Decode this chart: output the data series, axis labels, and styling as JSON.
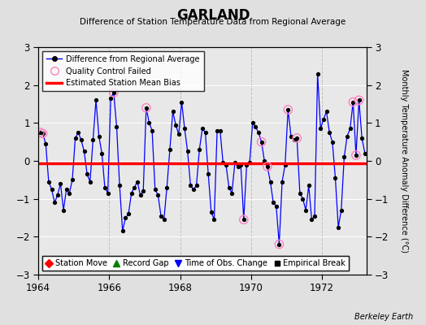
{
  "title": "GARLAND",
  "subtitle": "Difference of Station Temperature Data from Regional Average",
  "ylabel_right": "Monthly Temperature Anomaly Difference (°C)",
  "xlim": [
    1964.0,
    1973.25
  ],
  "ylim": [
    -3,
    3
  ],
  "yticks": [
    -3,
    -2,
    -1,
    0,
    1,
    2,
    3
  ],
  "xticks": [
    1964,
    1966,
    1968,
    1970,
    1972
  ],
  "bias_value": -0.07,
  "background_color": "#e0e0e0",
  "plot_bg_color": "#e8e8e8",
  "watermark": "Berkeley Earth",
  "time_series": [
    [
      1964.0417,
      0.75
    ],
    [
      1964.125,
      0.72
    ],
    [
      1964.2083,
      0.45
    ],
    [
      1964.2917,
      -0.55
    ],
    [
      1964.375,
      -0.75
    ],
    [
      1964.4583,
      -1.1
    ],
    [
      1964.5417,
      -0.9
    ],
    [
      1964.625,
      -0.6
    ],
    [
      1964.7083,
      -1.3
    ],
    [
      1964.7917,
      -0.75
    ],
    [
      1964.875,
      -0.85
    ],
    [
      1964.9583,
      -0.5
    ],
    [
      1965.0417,
      0.6
    ],
    [
      1965.125,
      0.75
    ],
    [
      1965.2083,
      0.55
    ],
    [
      1965.2917,
      0.25
    ],
    [
      1965.375,
      -0.35
    ],
    [
      1965.4583,
      -0.55
    ],
    [
      1965.5417,
      0.55
    ],
    [
      1965.625,
      1.6
    ],
    [
      1965.7083,
      0.65
    ],
    [
      1965.7917,
      0.2
    ],
    [
      1965.875,
      -0.7
    ],
    [
      1965.9583,
      -0.85
    ],
    [
      1966.0417,
      1.65
    ],
    [
      1966.125,
      1.8
    ],
    [
      1966.2083,
      0.9
    ],
    [
      1966.2917,
      -0.65
    ],
    [
      1966.375,
      -1.85
    ],
    [
      1966.4583,
      -1.5
    ],
    [
      1966.5417,
      -1.4
    ],
    [
      1966.625,
      -0.85
    ],
    [
      1966.7083,
      -0.7
    ],
    [
      1966.7917,
      -0.55
    ],
    [
      1966.875,
      -0.9
    ],
    [
      1966.9583,
      -0.8
    ],
    [
      1967.0417,
      1.4
    ],
    [
      1967.125,
      1.0
    ],
    [
      1967.2083,
      0.8
    ],
    [
      1967.2917,
      -0.75
    ],
    [
      1967.375,
      -0.9
    ],
    [
      1967.4583,
      -1.45
    ],
    [
      1967.5417,
      -1.55
    ],
    [
      1967.625,
      -0.7
    ],
    [
      1967.7083,
      0.3
    ],
    [
      1967.7917,
      1.3
    ],
    [
      1967.875,
      0.95
    ],
    [
      1967.9583,
      0.7
    ],
    [
      1968.0417,
      1.55
    ],
    [
      1968.125,
      0.85
    ],
    [
      1968.2083,
      0.25
    ],
    [
      1968.2917,
      -0.65
    ],
    [
      1968.375,
      -0.75
    ],
    [
      1968.4583,
      -0.65
    ],
    [
      1968.5417,
      0.3
    ],
    [
      1968.625,
      0.85
    ],
    [
      1968.7083,
      0.75
    ],
    [
      1968.7917,
      -0.35
    ],
    [
      1968.875,
      -1.35
    ],
    [
      1968.9583,
      -1.55
    ],
    [
      1969.0417,
      0.8
    ],
    [
      1969.125,
      0.8
    ],
    [
      1969.2083,
      -0.05
    ],
    [
      1969.2917,
      -0.1
    ],
    [
      1969.375,
      -0.7
    ],
    [
      1969.4583,
      -0.85
    ],
    [
      1969.5417,
      -0.05
    ],
    [
      1969.625,
      -0.15
    ],
    [
      1969.7083,
      -0.1
    ],
    [
      1969.7917,
      -1.55
    ],
    [
      1969.875,
      -0.1
    ],
    [
      1969.9583,
      -0.05
    ],
    [
      1970.0417,
      1.0
    ],
    [
      1970.125,
      0.9
    ],
    [
      1970.2083,
      0.75
    ],
    [
      1970.2917,
      0.5
    ],
    [
      1970.375,
      -0.0
    ],
    [
      1970.4583,
      -0.15
    ],
    [
      1970.5417,
      -0.55
    ],
    [
      1970.625,
      -1.1
    ],
    [
      1970.7083,
      -1.2
    ],
    [
      1970.7917,
      -2.2
    ],
    [
      1970.875,
      -0.55
    ],
    [
      1970.9583,
      -0.1
    ],
    [
      1971.0417,
      1.35
    ],
    [
      1971.125,
      0.65
    ],
    [
      1971.2083,
      0.55
    ],
    [
      1971.2917,
      0.6
    ],
    [
      1971.375,
      -0.85
    ],
    [
      1971.4583,
      -1.0
    ],
    [
      1971.5417,
      -1.3
    ],
    [
      1971.625,
      -0.65
    ],
    [
      1971.7083,
      -1.55
    ],
    [
      1971.7917,
      -1.45
    ],
    [
      1971.875,
      2.3
    ],
    [
      1971.9583,
      0.85
    ],
    [
      1972.0417,
      1.1
    ],
    [
      1972.125,
      1.3
    ],
    [
      1972.2083,
      0.75
    ],
    [
      1972.2917,
      0.5
    ],
    [
      1972.375,
      -0.45
    ],
    [
      1972.4583,
      -1.75
    ],
    [
      1972.5417,
      -1.3
    ],
    [
      1972.625,
      0.1
    ],
    [
      1972.7083,
      0.65
    ],
    [
      1972.7917,
      0.85
    ],
    [
      1972.875,
      1.55
    ],
    [
      1972.9583,
      0.15
    ],
    [
      1973.0417,
      1.6
    ],
    [
      1973.125,
      0.6
    ],
    [
      1973.2083,
      0.2
    ]
  ],
  "qc_failed": [
    [
      1964.0417,
      0.75
    ],
    [
      1964.125,
      0.72
    ],
    [
      1966.125,
      1.8
    ],
    [
      1967.0417,
      1.4
    ],
    [
      1969.7917,
      -1.55
    ],
    [
      1970.7917,
      -2.2
    ],
    [
      1970.2917,
      0.5
    ],
    [
      1970.4583,
      -0.15
    ],
    [
      1971.0417,
      1.35
    ],
    [
      1971.2917,
      0.6
    ],
    [
      1972.875,
      1.55
    ],
    [
      1972.9583,
      0.15
    ],
    [
      1973.0417,
      1.6
    ]
  ]
}
